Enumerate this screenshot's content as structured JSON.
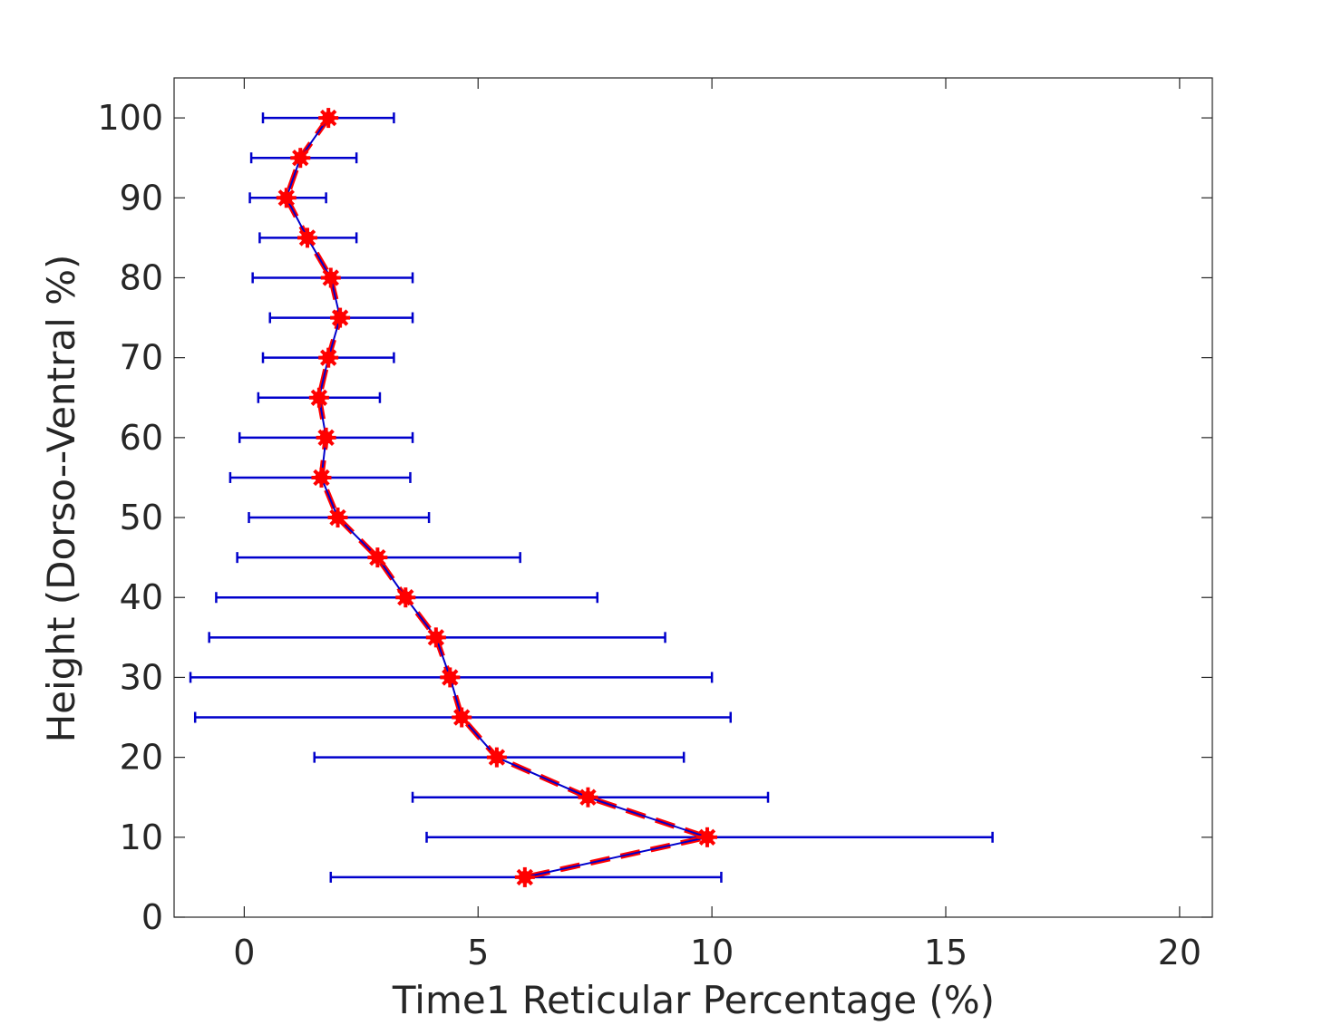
{
  "chart_data": {
    "type": "line",
    "title": "",
    "xlabel": "Time1 Reticular Percentage (%)",
    "ylabel": "Height (Dorso--Ventral %)",
    "xlim": [
      -1.5,
      20.7
    ],
    "ylim": [
      0,
      105
    ],
    "xticks": [
      0,
      5,
      10,
      15,
      20
    ],
    "yticks": [
      0,
      10,
      20,
      30,
      40,
      50,
      60,
      70,
      80,
      90,
      100
    ],
    "x_tick_labels": [
      "0",
      "5",
      "10",
      "15",
      "20"
    ],
    "y_tick_labels": [
      "0",
      "10",
      "20",
      "30",
      "40",
      "50",
      "60",
      "70",
      "80",
      "90",
      "100"
    ],
    "grid": false,
    "legend": false,
    "series": [
      {
        "line_color": "#0000cc",
        "marker_color": "#ff0000",
        "marker": "star",
        "points": [
          {
            "x": 1.8,
            "y": 100,
            "xneg": 0.4,
            "xpos": 3.2
          },
          {
            "x": 1.2,
            "y": 95,
            "xneg": 0.15,
            "xpos": 2.4
          },
          {
            "x": 0.9,
            "y": 90,
            "xneg": 0.12,
            "xpos": 1.75
          },
          {
            "x": 1.35,
            "y": 85,
            "xneg": 0.33,
            "xpos": 2.4
          },
          {
            "x": 1.85,
            "y": 80,
            "xneg": 0.18,
            "xpos": 3.6
          },
          {
            "x": 2.05,
            "y": 75,
            "xneg": 0.55,
            "xpos": 3.6
          },
          {
            "x": 1.8,
            "y": 70,
            "xneg": 0.4,
            "xpos": 3.2
          },
          {
            "x": 1.6,
            "y": 65,
            "xneg": 0.3,
            "xpos": 2.9
          },
          {
            "x": 1.75,
            "y": 60,
            "xneg": -0.1,
            "xpos": 3.6
          },
          {
            "x": 1.65,
            "y": 55,
            "xneg": -0.3,
            "xpos": 3.55
          },
          {
            "x": 2.0,
            "y": 50,
            "xneg": 0.1,
            "xpos": 3.95
          },
          {
            "x": 2.85,
            "y": 45,
            "xneg": -0.15,
            "xpos": 5.9
          },
          {
            "x": 3.45,
            "y": 40,
            "xneg": -0.6,
            "xpos": 7.55
          },
          {
            "x": 4.1,
            "y": 35,
            "xneg": -0.75,
            "xpos": 9.0
          },
          {
            "x": 4.4,
            "y": 30,
            "xneg": -1.15,
            "xpos": 10.0
          },
          {
            "x": 4.65,
            "y": 25,
            "xneg": -1.05,
            "xpos": 10.4
          },
          {
            "x": 5.4,
            "y": 20,
            "xneg": 1.5,
            "xpos": 9.4
          },
          {
            "x": 7.35,
            "y": 15,
            "xneg": 3.6,
            "xpos": 11.2
          },
          {
            "x": 9.9,
            "y": 10,
            "xneg": 3.9,
            "xpos": 16.0
          },
          {
            "x": 6.0,
            "y": 5,
            "xneg": 1.85,
            "xpos": 10.2
          }
        ]
      }
    ]
  }
}
